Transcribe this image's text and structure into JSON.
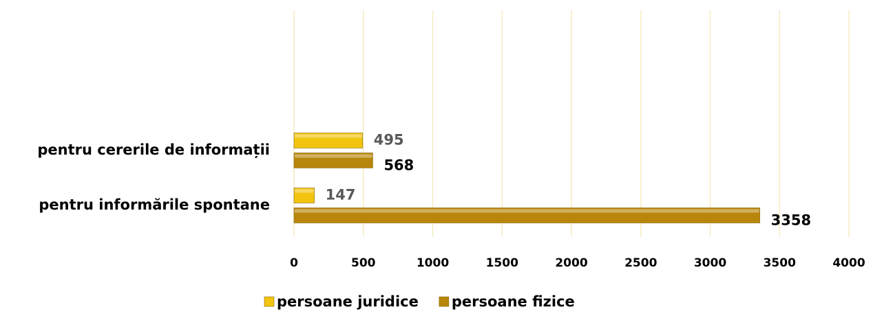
{
  "chart_data": {
    "type": "bar",
    "orientation": "horizontal",
    "categories": [
      "pentru cererile de informații",
      "pentru informările spontane"
    ],
    "series": [
      {
        "name": "persoane juridice",
        "color": "#f2c40f",
        "values": [
          495,
          147
        ]
      },
      {
        "name": "persoane fizice",
        "color": "#b8860b",
        "values": [
          568,
          3358
        ]
      }
    ],
    "xlim": [
      0,
      4000
    ],
    "xticks": [
      0,
      500,
      1000,
      1500,
      2000,
      2500,
      3000,
      3500,
      4000
    ],
    "grid": true,
    "legend": "bottom"
  }
}
